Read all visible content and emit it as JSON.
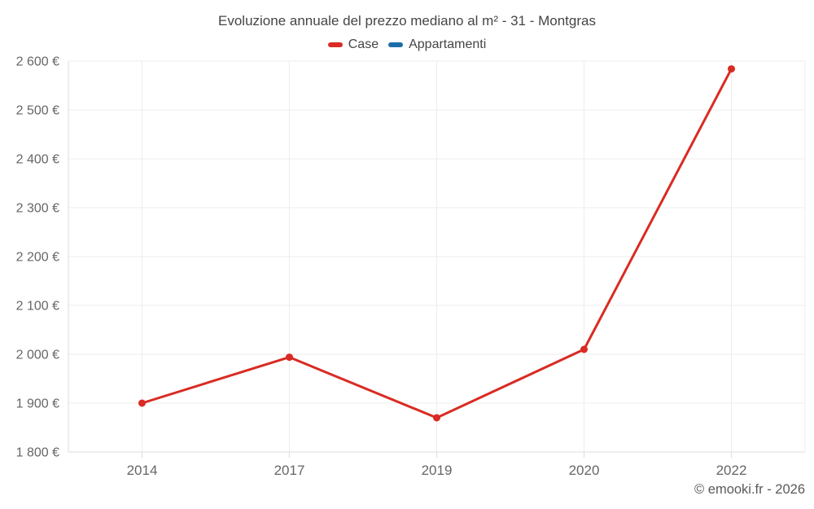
{
  "footer": {
    "text": "© emooki.fr - 2026"
  },
  "chart_data": {
    "type": "line",
    "title": "Evoluzione annuale del prezzo mediano al m² - 31 - Montgras",
    "categories": [
      "2014",
      "2017",
      "2019",
      "2020",
      "2022"
    ],
    "series": [
      {
        "name": "Case",
        "color": "#d92b23",
        "values": [
          1900,
          1994,
          1870,
          2010,
          2584
        ]
      },
      {
        "name": "Appartamenti",
        "color": "#1b6ea8",
        "values": []
      }
    ],
    "xlabel": "",
    "ylabel": "",
    "ylim": [
      1800,
      2600
    ],
    "ytick_step": 100,
    "ytick_labels": [
      "1 800 €",
      "1 900 €",
      "2 000 €",
      "2 100 €",
      "2 200 €",
      "2 300 €",
      "2 400 €",
      "2 500 €",
      "2 600 €"
    ],
    "grid": true,
    "legend_position": "top",
    "colors": {
      "grid": "#ededed",
      "axis": "#dcdcdc",
      "tick_label": "#666666",
      "title_text": "#454545",
      "footer_text": "#5a5a5a",
      "background": "#ffffff"
    }
  }
}
